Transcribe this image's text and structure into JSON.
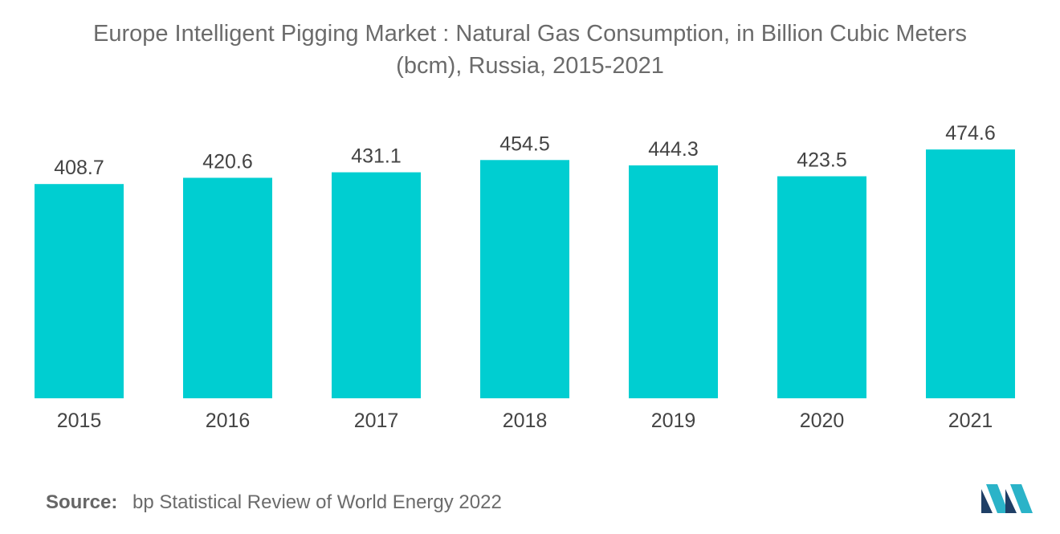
{
  "title": {
    "line1": "Europe Intelligent Pigging Market : Natural Gas Consumption, in Billion Cubic Meters",
    "line2": "(bcm), Russia, 2015-2021"
  },
  "source": {
    "label": "Source:",
    "text": "bp Statistical Review of World Energy 2022"
  },
  "logo": {
    "icon": "mordor-intelligence-logo-icon",
    "colors": [
      "#1f3f66",
      "#2bb3c8"
    ]
  },
  "colors": {
    "bar": "#00CED1",
    "text": "#444444",
    "title": "#6b6b6b"
  },
  "chart_data": {
    "type": "bar",
    "title": "Europe Intelligent Pigging Market : Natural Gas Consumption, in Billion Cubic Meters (bcm), Russia, 2015-2021",
    "categories": [
      "2015",
      "2016",
      "2017",
      "2018",
      "2019",
      "2020",
      "2021"
    ],
    "values": [
      408.7,
      420.6,
      431.1,
      454.5,
      444.3,
      423.5,
      474.6
    ],
    "value_labels": [
      "408.7",
      "420.6",
      "431.1",
      "454.5",
      "444.3",
      "423.5",
      "474.6"
    ],
    "xlabel": "",
    "ylabel": "",
    "ylim": [
      0,
      530
    ],
    "grid": false,
    "legend": "none"
  }
}
